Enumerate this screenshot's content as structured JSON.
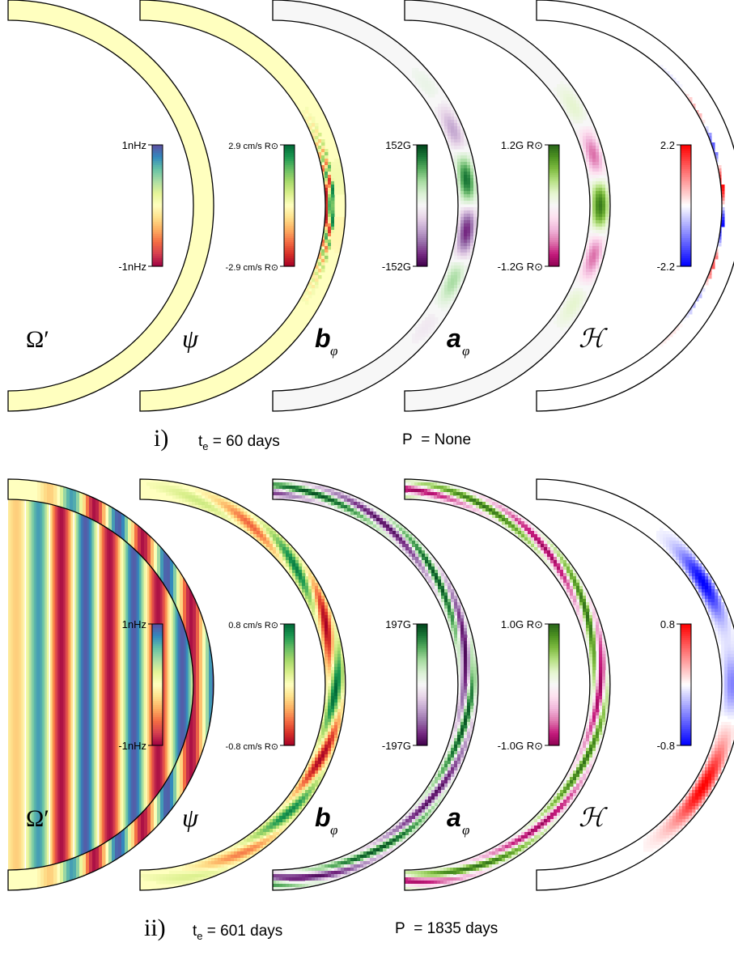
{
  "panels": [
    {
      "roman": "i)",
      "te": "60 days",
      "period": "None",
      "hemispheres": [
        {
          "symbol": "Ω′",
          "colormap": "spectral_r",
          "pattern": "omega_i",
          "colorbar": {
            "top": "1nHz",
            "bottom": "-1nHz"
          }
        },
        {
          "symbol": "ψ",
          "colormap": "rdylgn",
          "pattern": "psi_i",
          "colorbar": {
            "top": "2.9",
            "bottom": "-2.9",
            "unit": "cm/s R⊙"
          }
        },
        {
          "symbol": "b",
          "subscript": "φ",
          "colormap": "prgn",
          "pattern": "b_i",
          "colorbar": {
            "top": "152G",
            "bottom": "-152G"
          }
        },
        {
          "symbol": "a",
          "subscript": "φ",
          "colormap": "piyg",
          "pattern": "a_i",
          "colorbar": {
            "top": "1.2G R⊙",
            "bottom": "-1.2G R⊙"
          }
        },
        {
          "symbol": "ℋ",
          "colormap": "bwr",
          "pattern": "h_i",
          "colorbar": {
            "top": "2.2",
            "bottom": "-2.2"
          }
        }
      ]
    },
    {
      "roman": "ii)",
      "te": "601 days",
      "period": "1835 days",
      "hemispheres": [
        {
          "symbol": "Ω′",
          "colormap": "spectral_r",
          "pattern": "omega_ii",
          "colorbar": {
            "top": "1nHz",
            "bottom": "-1nHz"
          }
        },
        {
          "symbol": "ψ",
          "colormap": "rdylgn",
          "pattern": "psi_ii",
          "colorbar": {
            "top": "0.8",
            "bottom": "-0.8",
            "unit": "cm/s R⊙"
          }
        },
        {
          "symbol": "b",
          "subscript": "φ",
          "colormap": "prgn",
          "pattern": "b_ii",
          "colorbar": {
            "top": "197G",
            "bottom": "-197G"
          }
        },
        {
          "symbol": "a",
          "subscript": "φ",
          "colormap": "piyg",
          "pattern": "a_ii",
          "colorbar": {
            "top": "1.0G R⊙",
            "bottom": "-1.0G R⊙"
          }
        },
        {
          "symbol": "ℋ",
          "colormap": "bwr",
          "pattern": "h_ii",
          "colorbar": {
            "top": "0.8",
            "bottom": "-0.8"
          }
        }
      ]
    }
  ],
  "colors": {
    "spectral_r": [
      "#9e0142",
      "#d53e4f",
      "#f46d43",
      "#fdae61",
      "#fee08b",
      "#ffffbf",
      "#e6f598",
      "#abdda4",
      "#66c2a5",
      "#3288bd",
      "#5e4fa2"
    ],
    "rdylgn": [
      "#a50026",
      "#d73027",
      "#f46d43",
      "#fdae61",
      "#fee08b",
      "#ffffbf",
      "#d9ef8b",
      "#a6d96a",
      "#66bd63",
      "#1a9850",
      "#006837"
    ],
    "prgn": [
      "#40004b",
      "#762a83",
      "#9970ab",
      "#c2a5cf",
      "#e7d4e8",
      "#f7f7f7",
      "#d9f0d3",
      "#a6dba0",
      "#5aae61",
      "#1b7837",
      "#00441b"
    ],
    "piyg": [
      "#8e0152",
      "#c51b7d",
      "#de77ae",
      "#f1b6da",
      "#fde0ef",
      "#f7f7f7",
      "#e6f5d0",
      "#b8e186",
      "#7fbc41",
      "#4d9221",
      "#276419"
    ],
    "bwr": [
      "#0000ff",
      "#8080ff",
      "#ffffff",
      "#ff8080",
      "#ff0000"
    ]
  }
}
